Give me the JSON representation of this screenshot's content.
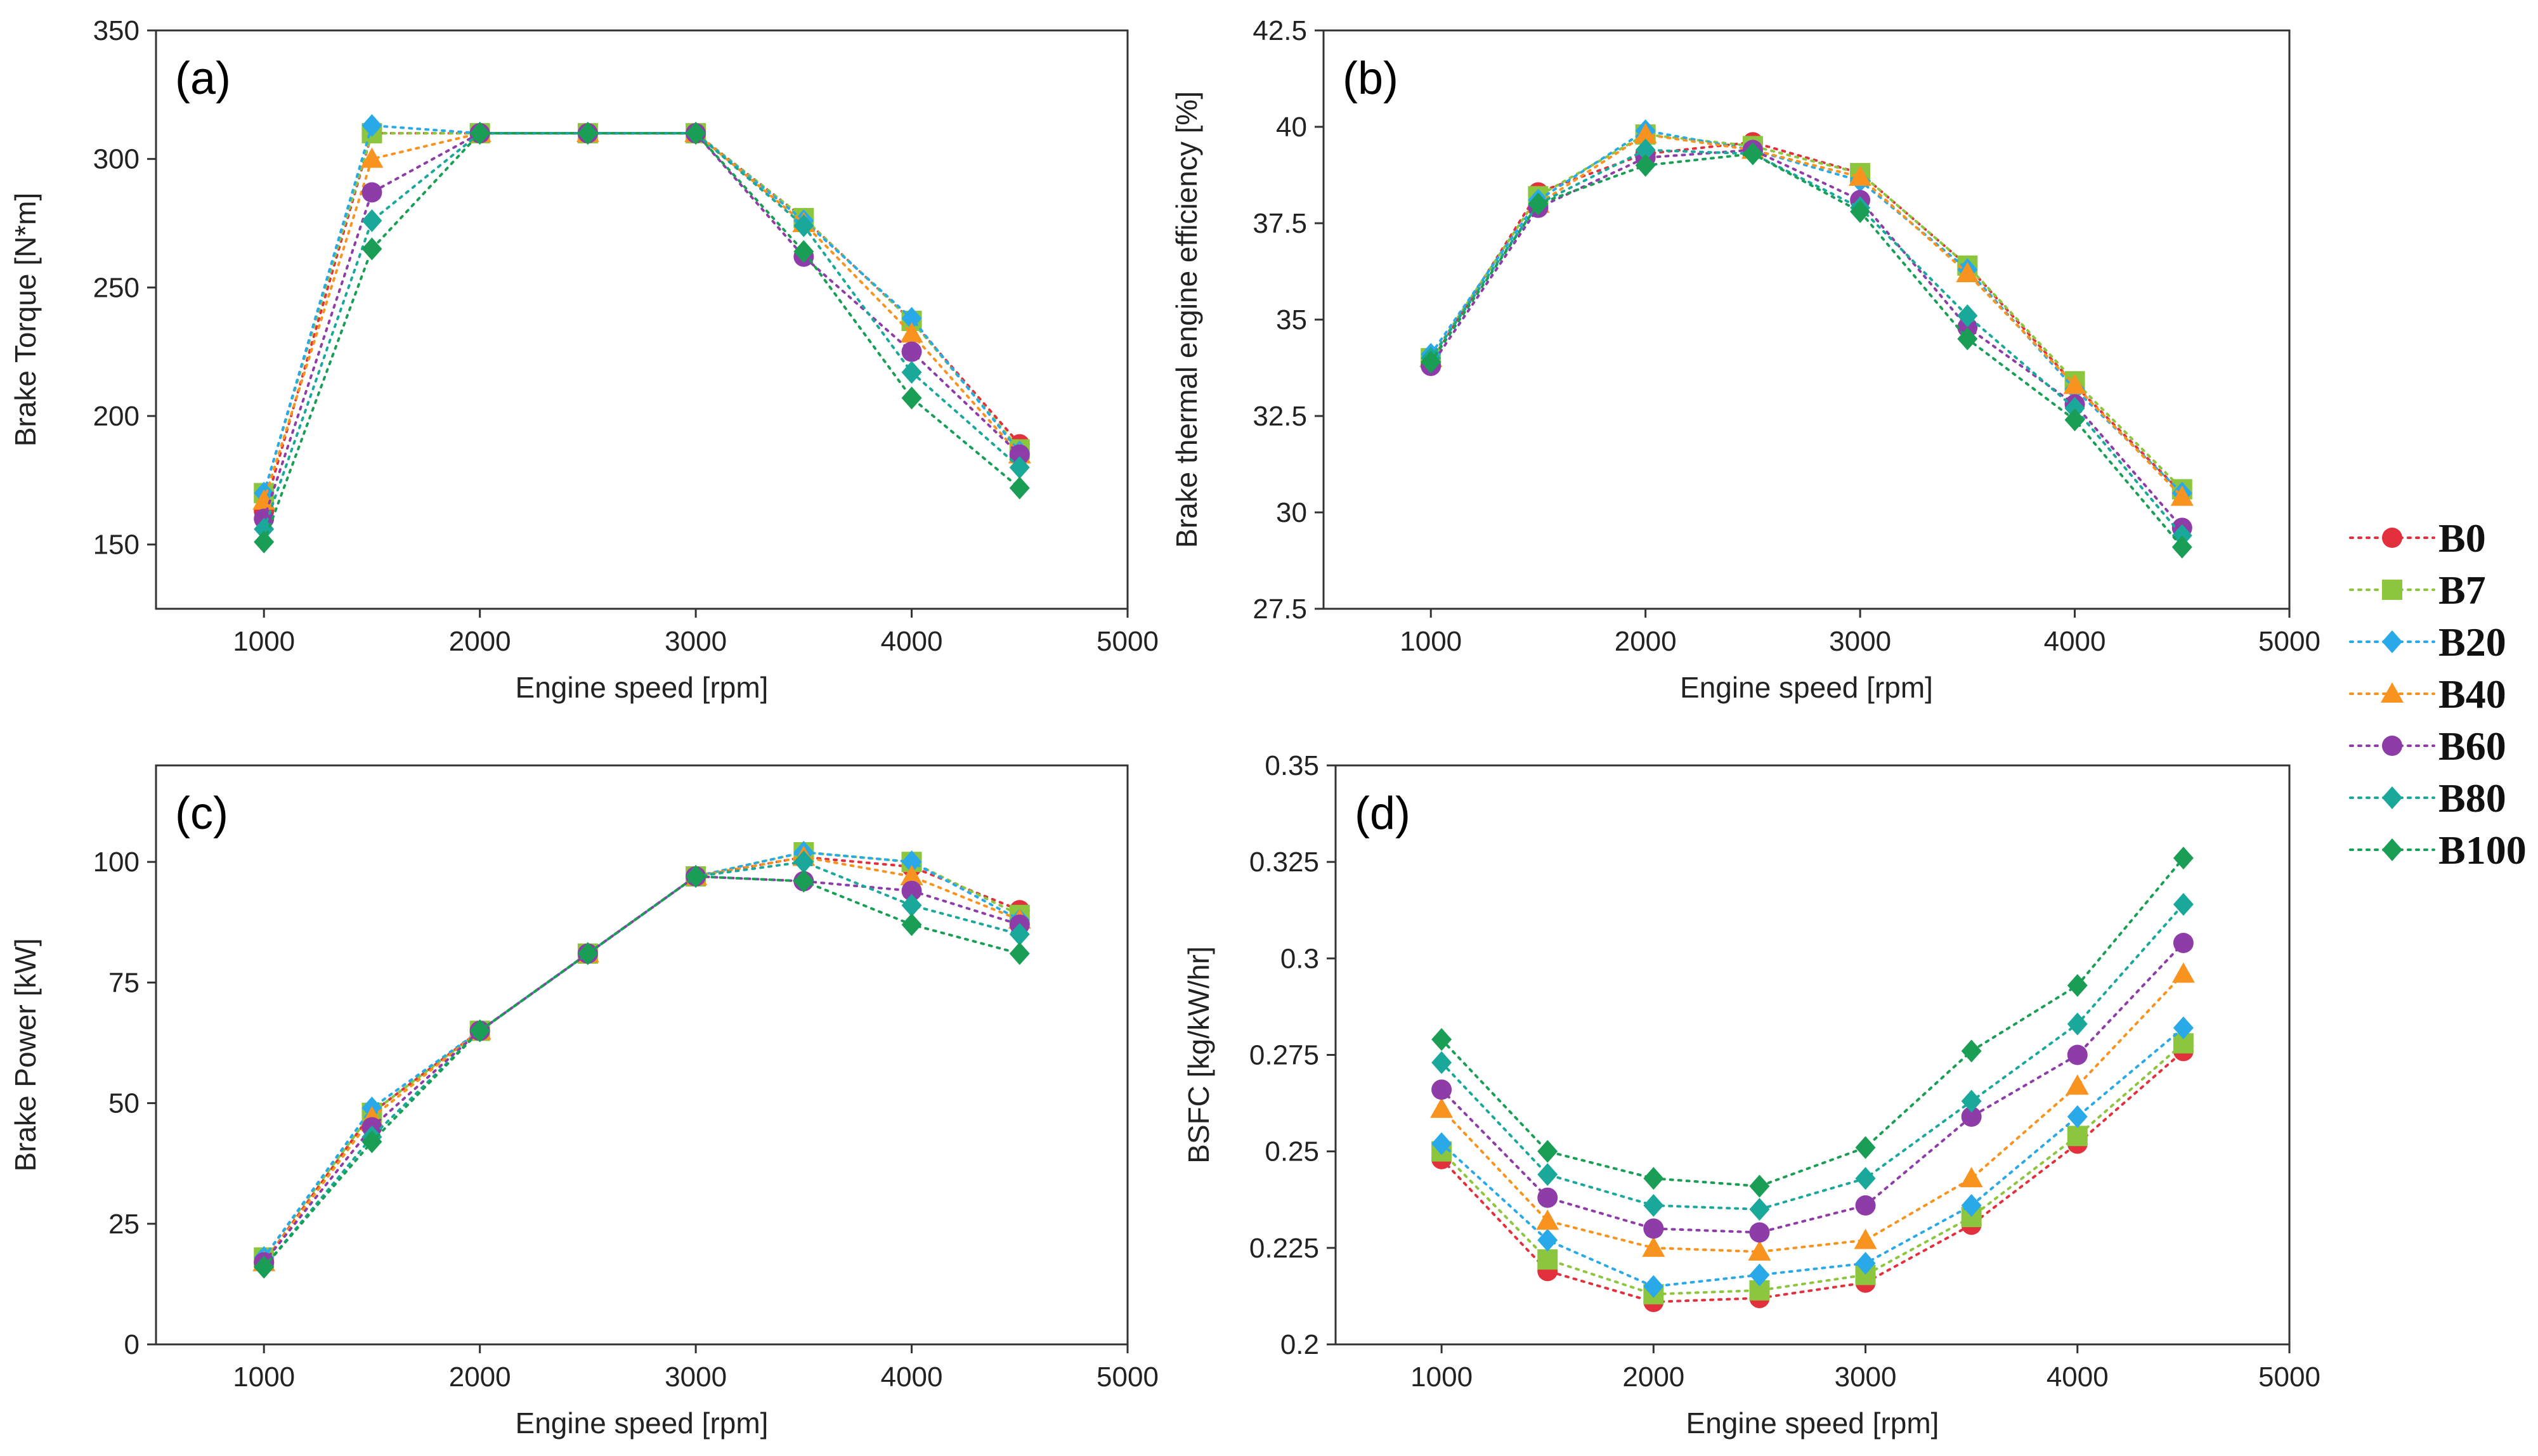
{
  "figure": {
    "background": "#ffffff"
  },
  "legend": {
    "placement": "right-middle",
    "entries": [
      {
        "label": "B0",
        "color": "#e2303c",
        "marker": "circle"
      },
      {
        "label": "B7",
        "color": "#8cc63f",
        "marker": "square"
      },
      {
        "label": "B20",
        "color": "#2aa9e8",
        "marker": "diamond"
      },
      {
        "label": "B40",
        "color": "#f7931e",
        "marker": "triangle"
      },
      {
        "label": "B60",
        "color": "#8e3ca8",
        "marker": "circle"
      },
      {
        "label": "B80",
        "color": "#1aa89a",
        "marker": "diamond"
      },
      {
        "label": "B100",
        "color": "#1a9e55",
        "marker": "diamond"
      }
    ]
  },
  "chart_data": [
    {
      "type": "line",
      "panel": "(a)",
      "xlabel": "Engine speed [rpm]",
      "ylabel": "Brake Torque [N*m]",
      "xlim": [
        500,
        5000
      ],
      "ylim": [
        125,
        350
      ],
      "xticks": [
        1000,
        2000,
        3000,
        4000,
        5000
      ],
      "yticks": [
        150,
        200,
        250,
        300,
        350
      ],
      "x": [
        1000,
        1500,
        2000,
        2500,
        3000,
        3500,
        4000,
        4500
      ],
      "series": [
        {
          "name": "B0",
          "values": [
            163,
            310,
            310,
            310,
            310,
            277,
            237,
            189
          ]
        },
        {
          "name": "B7",
          "values": [
            170,
            310,
            310,
            310,
            310,
            277,
            237,
            187
          ]
        },
        {
          "name": "B20",
          "values": [
            170,
            313,
            310,
            310,
            310,
            276,
            238,
            186
          ]
        },
        {
          "name": "B40",
          "values": [
            167,
            300,
            310,
            310,
            310,
            275,
            232,
            185
          ]
        },
        {
          "name": "B60",
          "values": [
            160,
            287,
            310,
            310,
            310,
            262,
            225,
            185
          ]
        },
        {
          "name": "B80",
          "values": [
            156,
            276,
            310,
            310,
            310,
            274,
            217,
            180
          ]
        },
        {
          "name": "B100",
          "values": [
            151,
            265,
            310,
            310,
            310,
            264,
            207,
            172
          ]
        }
      ]
    },
    {
      "type": "line",
      "panel": "(b)",
      "xlabel": "Engine speed [rpm]",
      "ylabel": "Brake thermal engine efficiency [%]",
      "xlim": [
        500,
        5000
      ],
      "ylim": [
        27.5,
        42.5
      ],
      "xticks": [
        1000,
        2000,
        3000,
        4000,
        5000
      ],
      "yticks": [
        27.5,
        30,
        32.5,
        35,
        37.5,
        40,
        42.5
      ],
      "ytick_labels": [
        "27.5",
        "30",
        "32.5",
        "35",
        "37.5",
        "40",
        "42.5"
      ],
      "x": [
        1000,
        1500,
        2000,
        2500,
        3000,
        3500,
        4000,
        4500
      ],
      "series": [
        {
          "name": "B0",
          "values": [
            33.9,
            38.3,
            39.3,
            39.6,
            38.8,
            36.4,
            33.3,
            30.5
          ]
        },
        {
          "name": "B7",
          "values": [
            34.0,
            38.2,
            39.8,
            39.5,
            38.8,
            36.4,
            33.4,
            30.6
          ]
        },
        {
          "name": "B20",
          "values": [
            34.1,
            38.1,
            39.9,
            39.4,
            38.6,
            36.3,
            33.2,
            30.5
          ]
        },
        {
          "name": "B40",
          "values": [
            34.0,
            38.0,
            39.8,
            39.4,
            38.7,
            36.2,
            33.3,
            30.4
          ]
        },
        {
          "name": "B60",
          "values": [
            33.8,
            37.9,
            39.2,
            39.4,
            38.1,
            34.8,
            32.8,
            29.6
          ]
        },
        {
          "name": "B80",
          "values": [
            34.0,
            38.0,
            39.4,
            39.3,
            37.9,
            35.1,
            32.7,
            29.4
          ]
        },
        {
          "name": "B100",
          "values": [
            33.9,
            38.0,
            39.0,
            39.3,
            37.8,
            34.5,
            32.4,
            29.1
          ]
        }
      ]
    },
    {
      "type": "line",
      "panel": "(c)",
      "xlabel": "Engine speed [rpm]",
      "ylabel": "Brake Power [kW]",
      "xlim": [
        500,
        5000
      ],
      "ylim": [
        0,
        120
      ],
      "xticks": [
        1000,
        2000,
        3000,
        4000,
        5000
      ],
      "yticks": [
        0,
        25,
        50,
        75,
        100
      ],
      "x": [
        1000,
        1500,
        2000,
        2500,
        3000,
        3500,
        4000,
        4500
      ],
      "series": [
        {
          "name": "B0",
          "values": [
            17,
            48,
            65,
            81,
            97,
            101,
            99,
            90
          ]
        },
        {
          "name": "B7",
          "values": [
            18,
            48,
            65,
            81,
            97,
            102,
            100,
            89
          ]
        },
        {
          "name": "B20",
          "values": [
            18,
            49,
            65,
            81,
            97,
            102,
            100,
            88
          ]
        },
        {
          "name": "B40",
          "values": [
            17,
            47,
            65,
            81,
            97,
            101,
            97,
            88
          ]
        },
        {
          "name": "B60",
          "values": [
            17,
            45,
            65,
            81,
            97,
            96,
            94,
            87
          ]
        },
        {
          "name": "B80",
          "values": [
            16,
            43,
            65,
            81,
            97,
            100,
            91,
            85
          ]
        },
        {
          "name": "B100",
          "values": [
            16,
            42,
            65,
            81,
            97,
            96,
            87,
            81
          ]
        }
      ]
    },
    {
      "type": "line",
      "panel": "(d)",
      "xlabel": "Engine speed [rpm]",
      "ylabel": "BSFC [kg/kW/hr]",
      "xlim": [
        500,
        5000
      ],
      "ylim": [
        0.2,
        0.35
      ],
      "xticks": [
        1000,
        2000,
        3000,
        4000,
        5000
      ],
      "yticks": [
        0.2,
        0.225,
        0.25,
        0.275,
        0.3,
        0.325,
        0.35
      ],
      "ytick_labels": [
        "0.2",
        "0.225",
        "0.25",
        "0.275",
        "0.3",
        "0.325",
        "0.35"
      ],
      "x": [
        1000,
        1500,
        2000,
        2500,
        3000,
        3500,
        4000,
        4500
      ],
      "series": [
        {
          "name": "B0",
          "values": [
            0.248,
            0.219,
            0.211,
            0.212,
            0.216,
            0.231,
            0.252,
            0.276
          ]
        },
        {
          "name": "B7",
          "values": [
            0.25,
            0.222,
            0.213,
            0.214,
            0.218,
            0.233,
            0.254,
            0.278
          ]
        },
        {
          "name": "B20",
          "values": [
            0.252,
            0.227,
            0.215,
            0.218,
            0.221,
            0.236,
            0.259,
            0.282
          ]
        },
        {
          "name": "B40",
          "values": [
            0.261,
            0.232,
            0.225,
            0.224,
            0.227,
            0.243,
            0.267,
            0.296
          ]
        },
        {
          "name": "B60",
          "values": [
            0.266,
            0.238,
            0.23,
            0.229,
            0.236,
            0.259,
            0.275,
            0.304
          ]
        },
        {
          "name": "B80",
          "values": [
            0.273,
            0.244,
            0.236,
            0.235,
            0.243,
            0.263,
            0.283,
            0.314
          ]
        },
        {
          "name": "B100",
          "values": [
            0.279,
            0.25,
            0.243,
            0.241,
            0.251,
            0.276,
            0.293,
            0.326
          ]
        }
      ]
    }
  ]
}
